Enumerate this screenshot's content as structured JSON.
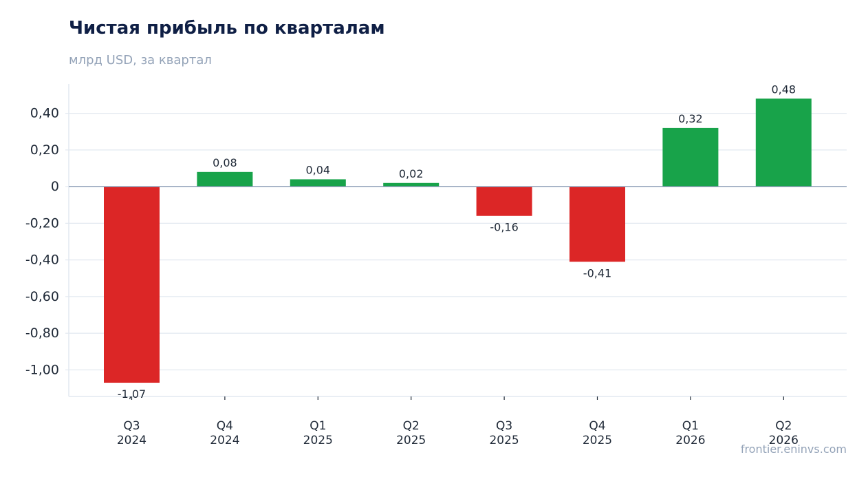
{
  "header": {
    "title": "Чистая прибыль по кварталам",
    "subtitle": "млрд USD, за квартал"
  },
  "footer": {
    "source": "frontier.eninvs.com"
  },
  "colors": {
    "positive": "#18a34a",
    "negative": "#dc2626",
    "grid": "#e2e8f0",
    "zero_line": "#8a9bb5",
    "axis_text": "#1f2937"
  },
  "chart_data": {
    "type": "bar",
    "categories": [
      [
        "Q3",
        "2024"
      ],
      [
        "Q4",
        "2024"
      ],
      [
        "Q1",
        "2025"
      ],
      [
        "Q2",
        "2025"
      ],
      [
        "Q3",
        "2025"
      ],
      [
        "Q4",
        "2025"
      ],
      [
        "Q1",
        "2026"
      ],
      [
        "Q2",
        "2026"
      ]
    ],
    "values": [
      -1.07,
      0.08,
      0.04,
      0.02,
      -0.16,
      -0.41,
      0.32,
      0.48
    ],
    "value_labels": [
      "-1,07",
      "0,08",
      "0,04",
      "0,02",
      "-0,16",
      "-0,41",
      "0,32",
      "0,48"
    ],
    "yticks": [
      0.4,
      0.2,
      0,
      -0.2,
      -0.4,
      -0.6,
      -0.8,
      -1.0
    ],
    "ytick_labels": [
      "0,40",
      "0,20",
      "0",
      "-0,20",
      "-0,40",
      "-0,60",
      "-0,80",
      "-1,00"
    ],
    "ylim": [
      -1.145,
      0.56
    ],
    "grid": true,
    "legend": "none"
  }
}
